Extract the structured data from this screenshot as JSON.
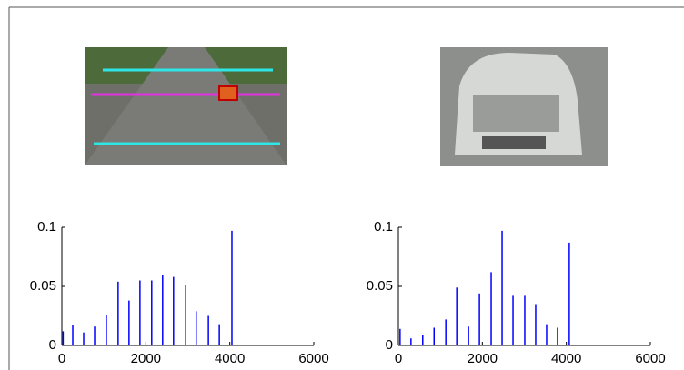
{
  "chart_data": [
    {
      "type": "stem",
      "color": "#0000ff",
      "x": [
        30,
        260,
        520,
        780,
        1060,
        1340,
        1600,
        1860,
        2140,
        2400,
        2660,
        2950,
        3200,
        3490,
        3750,
        4050
      ],
      "values": [
        0.012,
        0.017,
        0.011,
        0.016,
        0.026,
        0.054,
        0.038,
        0.055,
        0.055,
        0.06,
        0.058,
        0.051,
        0.029,
        0.025,
        0.018,
        0.097
      ],
      "xlim": [
        0,
        6000
      ],
      "xticks": [
        0,
        2000,
        4000,
        6000
      ],
      "ylim": [
        0,
        0.1
      ],
      "yticks": [
        0,
        0.05,
        0.1
      ]
    },
    {
      "type": "stem",
      "color": "#0000ff",
      "x": [
        40,
        300,
        580,
        850,
        1130,
        1390,
        1670,
        1930,
        2210,
        2470,
        2730,
        3010,
        3270,
        3530,
        3790,
        4070
      ],
      "values": [
        0.014,
        0.006,
        0.009,
        0.015,
        0.022,
        0.049,
        0.016,
        0.044,
        0.062,
        0.097,
        0.042,
        0.042,
        0.035,
        0.018,
        0.015,
        0.087
      ],
      "xlim": [
        0,
        6000
      ],
      "xticks": [
        0,
        2000,
        4000,
        6000
      ],
      "ylim": [
        0,
        0.1
      ],
      "yticks": [
        0,
        0.05,
        0.1
      ]
    }
  ]
}
